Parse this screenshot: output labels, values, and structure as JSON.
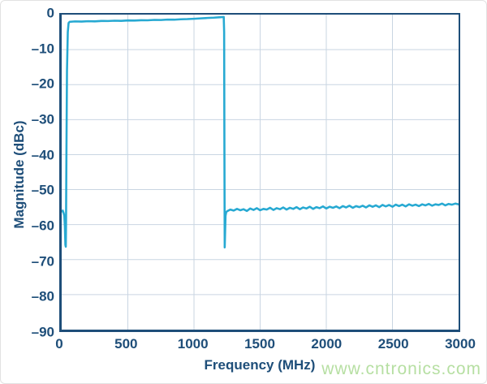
{
  "watermark": {
    "text": "www.cntronics.com",
    "color": "#b6dfa2"
  },
  "chart_data": {
    "type": "line",
    "title": "",
    "xlabel": "Frequency (MHz)",
    "ylabel": "Magnitude (dBc)",
    "xlim": [
      0,
      3000
    ],
    "ylim": [
      -90,
      0
    ],
    "grid": true,
    "legend": "none",
    "xticks": [
      0,
      500,
      1000,
      1500,
      2000,
      2500,
      3000
    ],
    "xtick_labels": [
      "0",
      "500",
      "1000",
      "1500",
      "2000",
      "2500",
      "3000"
    ],
    "yticks": [
      0,
      -10,
      -20,
      -30,
      -40,
      -50,
      -60,
      -70,
      -80,
      -90
    ],
    "ytick_labels": [
      "0",
      "–10",
      "–20",
      "–30",
      "–40",
      "–50",
      "–60",
      "–70",
      "–80",
      "–90"
    ],
    "colors": {
      "line": "#27a9d2",
      "axis": "#1e4e79",
      "grid": "#c9d5e2",
      "label": "#1e4e79"
    },
    "line_width": 2.6,
    "series": [
      {
        "name": "magnitude",
        "points": [
          [
            0,
            -56.2
          ],
          [
            8,
            -56.0
          ],
          [
            14,
            -56.6
          ],
          [
            20,
            -57.5
          ],
          [
            24,
            -60.5
          ],
          [
            28,
            -65.8
          ],
          [
            31,
            -66.3
          ],
          [
            33,
            -60
          ],
          [
            36,
            -40
          ],
          [
            40,
            -16
          ],
          [
            46,
            -5
          ],
          [
            52,
            -2.4
          ],
          [
            60,
            -2.05
          ],
          [
            100,
            -1.95
          ],
          [
            150,
            -2.0
          ],
          [
            200,
            -1.88
          ],
          [
            250,
            -1.92
          ],
          [
            300,
            -1.8
          ],
          [
            350,
            -1.84
          ],
          [
            400,
            -1.74
          ],
          [
            450,
            -1.78
          ],
          [
            500,
            -1.68
          ],
          [
            550,
            -1.7
          ],
          [
            600,
            -1.6
          ],
          [
            650,
            -1.62
          ],
          [
            700,
            -1.52
          ],
          [
            750,
            -1.53
          ],
          [
            800,
            -1.43
          ],
          [
            850,
            -1.44
          ],
          [
            900,
            -1.33
          ],
          [
            950,
            -1.28
          ],
          [
            1000,
            -1.18
          ],
          [
            1050,
            -1.08
          ],
          [
            1100,
            -0.97
          ],
          [
            1150,
            -0.86
          ],
          [
            1200,
            -0.74
          ],
          [
            1225,
            -0.66
          ],
          [
            1228,
            -5
          ],
          [
            1230,
            -35
          ],
          [
            1232,
            -66.5
          ],
          [
            1235,
            -62
          ],
          [
            1238,
            -57.5
          ],
          [
            1244,
            -56.4
          ],
          [
            1250,
            -56.2
          ],
          [
            1275,
            -55.7
          ],
          [
            1300,
            -56.0
          ],
          [
            1325,
            -55.5
          ],
          [
            1350,
            -55.9
          ],
          [
            1375,
            -55.6
          ],
          [
            1400,
            -56.1
          ],
          [
            1425,
            -55.4
          ],
          [
            1450,
            -55.8
          ],
          [
            1475,
            -55.3
          ],
          [
            1500,
            -55.9
          ],
          [
            1525,
            -55.5
          ],
          [
            1550,
            -55.7
          ],
          [
            1575,
            -55.2
          ],
          [
            1600,
            -55.8
          ],
          [
            1625,
            -55.3
          ],
          [
            1650,
            -55.6
          ],
          [
            1675,
            -55.1
          ],
          [
            1700,
            -55.7
          ],
          [
            1725,
            -55.2
          ],
          [
            1750,
            -55.5
          ],
          [
            1775,
            -55.0
          ],
          [
            1800,
            -55.6
          ],
          [
            1825,
            -55.1
          ],
          [
            1850,
            -55.4
          ],
          [
            1875,
            -54.9
          ],
          [
            1900,
            -55.5
          ],
          [
            1925,
            -55.0
          ],
          [
            1950,
            -55.3
          ],
          [
            1975,
            -54.8
          ],
          [
            2000,
            -55.4
          ],
          [
            2025,
            -54.9
          ],
          [
            2050,
            -55.2
          ],
          [
            2075,
            -54.8
          ],
          [
            2100,
            -55.3
          ],
          [
            2125,
            -54.7
          ],
          [
            2150,
            -55.1
          ],
          [
            2175,
            -54.6
          ],
          [
            2200,
            -55.2
          ],
          [
            2225,
            -54.7
          ],
          [
            2250,
            -55.0
          ],
          [
            2275,
            -54.6
          ],
          [
            2300,
            -55.1
          ],
          [
            2325,
            -54.5
          ],
          [
            2350,
            -54.9
          ],
          [
            2375,
            -54.5
          ],
          [
            2400,
            -55.0
          ],
          [
            2425,
            -54.4
          ],
          [
            2450,
            -54.8
          ],
          [
            2475,
            -54.4
          ],
          [
            2500,
            -54.9
          ],
          [
            2525,
            -54.3
          ],
          [
            2550,
            -54.7
          ],
          [
            2575,
            -54.3
          ],
          [
            2600,
            -54.8
          ],
          [
            2625,
            -54.2
          ],
          [
            2650,
            -54.6
          ],
          [
            2675,
            -54.3
          ],
          [
            2700,
            -54.7
          ],
          [
            2725,
            -54.2
          ],
          [
            2750,
            -54.5
          ],
          [
            2775,
            -54.1
          ],
          [
            2800,
            -54.6
          ],
          [
            2825,
            -54.2
          ],
          [
            2850,
            -54.4
          ],
          [
            2875,
            -54.0
          ],
          [
            2900,
            -54.5
          ],
          [
            2925,
            -54.1
          ],
          [
            2950,
            -54.3
          ],
          [
            2975,
            -54.0
          ],
          [
            3000,
            -54.2
          ]
        ]
      }
    ]
  }
}
